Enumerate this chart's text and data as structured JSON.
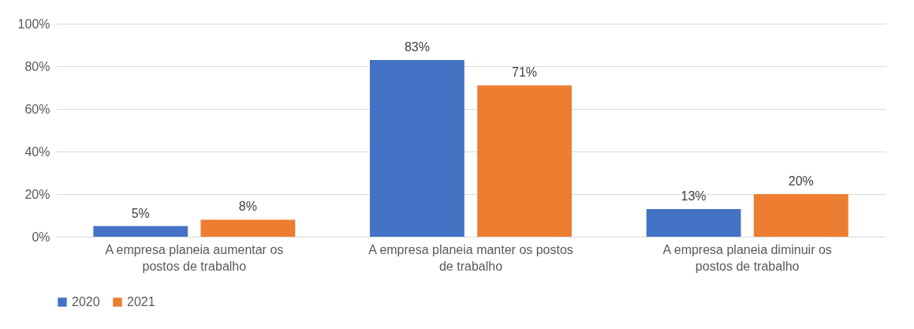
{
  "chart_data": {
    "type": "bar",
    "categories": [
      "A empresa planeia aumentar os postos de trabalho",
      "A empresa planeia manter os postos de trabalho",
      "A empresa planeia diminuir os postos de trabalho"
    ],
    "series": [
      {
        "name": "2020",
        "color": "#4472c4",
        "values": [
          5,
          83,
          13
        ],
        "value_labels": [
          "5%",
          "83%",
          "13%"
        ]
      },
      {
        "name": "2021",
        "color": "#ed7d31",
        "values": [
          8,
          71,
          20
        ],
        "value_labels": [
          "8%",
          "71%",
          "20%"
        ]
      }
    ],
    "ylim": [
      0,
      100
    ],
    "yticks": [
      {
        "value": 0,
        "label": "0%"
      },
      {
        "value": 20,
        "label": "20%"
      },
      {
        "value": 40,
        "label": "40%"
      },
      {
        "value": 60,
        "label": "60%"
      },
      {
        "value": 80,
        "label": "80%"
      },
      {
        "value": 100,
        "label": "100%"
      }
    ],
    "grid": "y",
    "legend": "bottom"
  }
}
